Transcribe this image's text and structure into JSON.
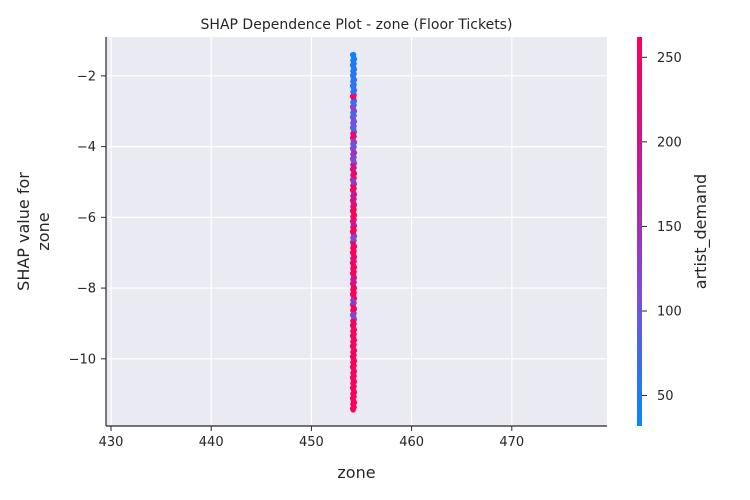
{
  "chart_data": {
    "type": "scatter",
    "title": "SHAP Dependence Plot - zone (Floor Tickets)",
    "xlabel": "zone",
    "ylabel": "SHAP value for\nzone",
    "xlim": [
      429.5,
      479.5
    ],
    "ylim": [
      -11.9,
      -0.9
    ],
    "xticks": [
      430,
      440,
      450,
      460,
      470
    ],
    "yticks": [
      -2,
      -4,
      -6,
      -8,
      -10
    ],
    "grid": true,
    "colorbar": {
      "label": "artist_demand",
      "range": [
        32,
        262
      ],
      "ticks": [
        50,
        100,
        150,
        200,
        250
      ],
      "colors": [
        "#008afb",
        "#7b4ed6",
        "#c01a9c",
        "#ff0052"
      ]
    },
    "points": {
      "x": 454.2,
      "y_range": [
        -11.45,
        -1.4
      ],
      "samples": [
        {
          "y": -1.4,
          "c": 45
        },
        {
          "y": -1.55,
          "c": 48
        },
        {
          "y": -1.75,
          "c": 52
        },
        {
          "y": -1.95,
          "c": 55
        },
        {
          "y": -2.1,
          "c": 60
        },
        {
          "y": -2.3,
          "c": 58
        },
        {
          "y": -2.45,
          "c": 64
        },
        {
          "y": -2.6,
          "c": 230
        },
        {
          "y": -2.75,
          "c": 70
        },
        {
          "y": -2.95,
          "c": 120
        },
        {
          "y": -3.1,
          "c": 75
        },
        {
          "y": -3.3,
          "c": 110
        },
        {
          "y": -3.5,
          "c": 90
        },
        {
          "y": -3.7,
          "c": 240
        },
        {
          "y": -3.85,
          "c": 130
        },
        {
          "y": -4.0,
          "c": 100
        },
        {
          "y": -4.2,
          "c": 150
        },
        {
          "y": -4.4,
          "c": 115
        },
        {
          "y": -4.6,
          "c": 210
        },
        {
          "y": -4.8,
          "c": 230
        },
        {
          "y": -5.0,
          "c": 140
        },
        {
          "y": -5.2,
          "c": 245
        },
        {
          "y": -5.4,
          "c": 190
        },
        {
          "y": -5.6,
          "c": 220
        },
        {
          "y": -5.8,
          "c": 250
        },
        {
          "y": -6.0,
          "c": 255
        },
        {
          "y": -6.2,
          "c": 200
        },
        {
          "y": -6.4,
          "c": 250
        },
        {
          "y": -6.6,
          "c": 120
        },
        {
          "y": -6.8,
          "c": 240
        },
        {
          "y": -7.0,
          "c": 255
        },
        {
          "y": -7.2,
          "c": 230
        },
        {
          "y": -7.4,
          "c": 250
        },
        {
          "y": -7.6,
          "c": 245
        },
        {
          "y": -7.8,
          "c": 200
        },
        {
          "y": -8.0,
          "c": 250
        },
        {
          "y": -8.2,
          "c": 255
        },
        {
          "y": -8.4,
          "c": 140
        },
        {
          "y": -8.6,
          "c": 250
        },
        {
          "y": -8.8,
          "c": 120
        },
        {
          "y": -9.0,
          "c": 255
        },
        {
          "y": -9.2,
          "c": 245
        },
        {
          "y": -9.4,
          "c": 250
        },
        {
          "y": -9.6,
          "c": 255
        },
        {
          "y": -9.8,
          "c": 240
        },
        {
          "y": -10.0,
          "c": 250
        },
        {
          "y": -10.2,
          "c": 255
        },
        {
          "y": -10.4,
          "c": 245
        },
        {
          "y": -10.6,
          "c": 250
        },
        {
          "y": -10.8,
          "c": 255
        },
        {
          "y": -11.0,
          "c": 250
        },
        {
          "y": -11.2,
          "c": 255
        },
        {
          "y": -11.4,
          "c": 250
        }
      ]
    }
  }
}
